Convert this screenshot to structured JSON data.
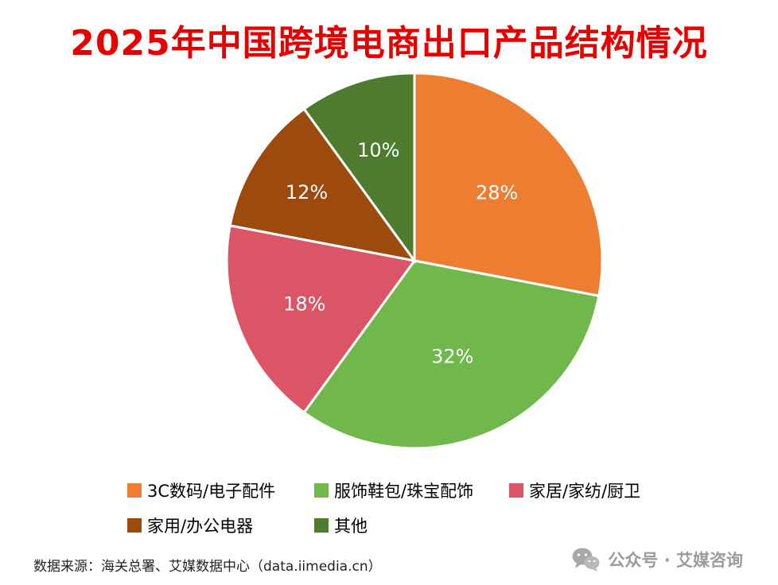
{
  "chart_data": {
    "type": "pie",
    "title": "2025年中国跨境电商出口产品结构情况",
    "labels": [
      "3C数码/电子配件",
      "服饰鞋包/珠宝配饰",
      "家居/家纺/厨卫",
      "家用/办公电器",
      "其他"
    ],
    "values": [
      28,
      32,
      18,
      12,
      10
    ],
    "data_labels": [
      "28%",
      "32%",
      "18%",
      "12%",
      "10%"
    ],
    "colors": [
      "#ED7D31",
      "#71B84C",
      "#DB5566",
      "#9C4A0D",
      "#4E7B2E"
    ],
    "title_color": "#e60000",
    "slice_label_color": "#ffffff",
    "legend_position": "bottom",
    "start_angle_deg": 0,
    "direction": "clockwise",
    "label_radius_frac": [
      0.57,
      0.55,
      0.63,
      0.68,
      0.62
    ]
  },
  "footer": {
    "source": "数据来源：海关总署、艾媒数据中心（data.iimedia.cn）",
    "wechat_label": "公众号 · 艾媒咨询"
  }
}
